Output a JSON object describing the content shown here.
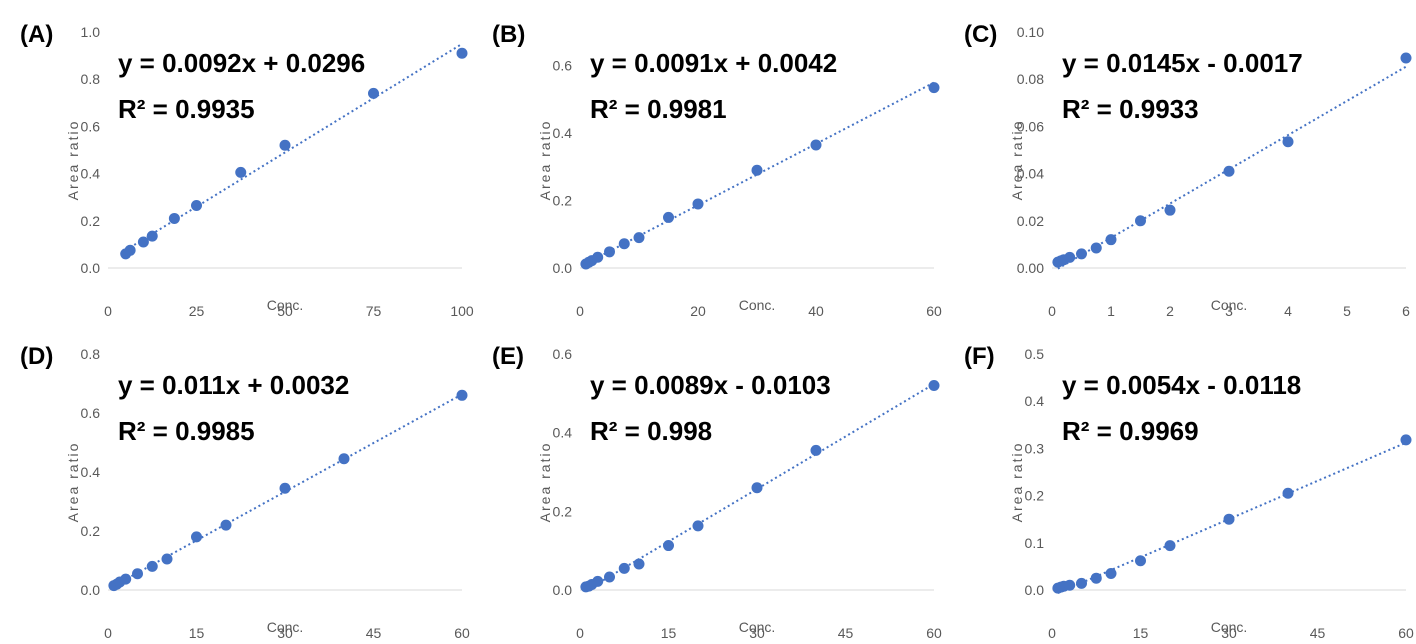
{
  "chart_data": [
    {
      "type": "scatter",
      "panel_label": "(A)",
      "equation": "y = 0.0092x + 0.0296",
      "r_squared": "R² = 0.9935",
      "xlabel": "Conc.",
      "ylabel": "Area ratio",
      "xlim": [
        0,
        100
      ],
      "ylim": [
        0,
        1.0
      ],
      "xticks": [
        "0",
        "25",
        "50",
        "75",
        "100"
      ],
      "xtick_values": [
        0,
        25,
        50,
        75,
        100
      ],
      "yticks": [
        "0.0",
        "0.2",
        "0.4",
        "0.6",
        "0.8",
        "1.0"
      ],
      "ytick_values": [
        0,
        0.2,
        0.4,
        0.6,
        0.8,
        1.0
      ],
      "trendline": {
        "slope": 0.0092,
        "intercept": 0.0296
      },
      "series": [
        {
          "x": [
            5,
            6.25,
            10,
            12.5,
            18.75,
            25,
            37.5,
            50,
            75,
            100
          ],
          "y": [
            0.06,
            0.075,
            0.11,
            0.135,
            0.21,
            0.265,
            0.405,
            0.52,
            0.74,
            0.91
          ]
        }
      ]
    },
    {
      "type": "scatter",
      "panel_label": "(B)",
      "equation": "y = 0.0091x + 0.0042",
      "r_squared": "R² = 0.9981",
      "xlabel": "Conc.",
      "ylabel": "Area ratio",
      "xlim": [
        0,
        60
      ],
      "ylim": [
        0,
        0.7
      ],
      "xticks": [
        "0",
        "20",
        "40",
        "60"
      ],
      "xtick_values": [
        0,
        20,
        40,
        60
      ],
      "yticks": [
        "0.0",
        "0.2",
        "0.4",
        "0.6"
      ],
      "ytick_values": [
        0,
        0.2,
        0.4,
        0.6
      ],
      "trendline": {
        "slope": 0.0091,
        "intercept": 0.0042
      },
      "series": [
        {
          "x": [
            1,
            1.5,
            2,
            3,
            5,
            7.5,
            10,
            15,
            20,
            30,
            40,
            60
          ],
          "y": [
            0.012,
            0.017,
            0.022,
            0.032,
            0.048,
            0.072,
            0.09,
            0.15,
            0.19,
            0.29,
            0.365,
            0.535
          ]
        }
      ]
    },
    {
      "type": "scatter",
      "panel_label": "(C)",
      "equation": "y = 0.0145x - 0.0017",
      "r_squared": "R² = 0.9933",
      "xlabel": "Conc.",
      "ylabel": "Area ratio",
      "xlim": [
        0,
        6
      ],
      "ylim": [
        0,
        0.1
      ],
      "xticks": [
        "0",
        "1",
        "2",
        "3",
        "4",
        "5",
        "6"
      ],
      "xtick_values": [
        0,
        1,
        2,
        3,
        4,
        5,
        6
      ],
      "yticks": [
        "0.00",
        "0.02",
        "0.04",
        "0.06",
        "0.08",
        "0.10"
      ],
      "ytick_values": [
        0,
        0.02,
        0.04,
        0.06,
        0.08,
        0.1
      ],
      "trendline": {
        "slope": 0.0145,
        "intercept": -0.0017
      },
      "series": [
        {
          "x": [
            0.1,
            0.15,
            0.2,
            0.3,
            0.5,
            0.75,
            1,
            1.5,
            2,
            3,
            4,
            6
          ],
          "y": [
            0.0025,
            0.003,
            0.0035,
            0.0045,
            0.006,
            0.0085,
            0.012,
            0.02,
            0.0245,
            0.041,
            0.0535,
            0.089
          ]
        }
      ]
    },
    {
      "type": "scatter",
      "panel_label": "(D)",
      "equation": "y = 0.011x + 0.0032",
      "r_squared": "R² = 0.9985",
      "xlabel": "Conc.",
      "ylabel": "Area ratio",
      "xlim": [
        0,
        60
      ],
      "ylim": [
        0,
        0.8
      ],
      "xticks": [
        "0",
        "15",
        "30",
        "45",
        "60"
      ],
      "xtick_values": [
        0,
        15,
        30,
        45,
        60
      ],
      "yticks": [
        "0.0",
        "0.2",
        "0.4",
        "0.6",
        "0.8"
      ],
      "ytick_values": [
        0,
        0.2,
        0.4,
        0.6,
        0.8
      ],
      "trendline": {
        "slope": 0.011,
        "intercept": 0.0032
      },
      "series": [
        {
          "x": [
            1,
            1.5,
            2,
            3,
            5,
            7.5,
            10,
            15,
            20,
            30,
            40,
            60
          ],
          "y": [
            0.015,
            0.02,
            0.027,
            0.037,
            0.055,
            0.08,
            0.105,
            0.18,
            0.22,
            0.345,
            0.445,
            0.66
          ]
        }
      ]
    },
    {
      "type": "scatter",
      "panel_label": "(E)",
      "equation": "y = 0.0089x - 0.0103",
      "r_squared": "R² = 0.998",
      "xlabel": "Conc.",
      "ylabel": "Area ratio",
      "xlim": [
        0,
        60
      ],
      "ylim": [
        0,
        0.6
      ],
      "xticks": [
        "0",
        "15",
        "30",
        "45",
        "60"
      ],
      "xtick_values": [
        0,
        15,
        30,
        45,
        60
      ],
      "yticks": [
        "0.0",
        "0.2",
        "0.4",
        "0.6"
      ],
      "ytick_values": [
        0,
        0.2,
        0.4,
        0.6
      ],
      "trendline": {
        "slope": 0.0089,
        "intercept": -0.0103
      },
      "series": [
        {
          "x": [
            1,
            1.5,
            2,
            3,
            5,
            7.5,
            10,
            15,
            20,
            30,
            40,
            60
          ],
          "y": [
            0.008,
            0.01,
            0.014,
            0.022,
            0.033,
            0.055,
            0.066,
            0.113,
            0.163,
            0.26,
            0.355,
            0.52
          ]
        }
      ]
    },
    {
      "type": "scatter",
      "panel_label": "(F)",
      "equation": "y = 0.0054x - 0.0118",
      "r_squared": "R² = 0.9969",
      "xlabel": "Conc.",
      "ylabel": "Area ratio",
      "xlim": [
        0,
        60
      ],
      "ylim": [
        0,
        0.5
      ],
      "xticks": [
        "0",
        "15",
        "30",
        "45",
        "60"
      ],
      "xtick_values": [
        0,
        15,
        30,
        45,
        60
      ],
      "yticks": [
        "0.0",
        "0.1",
        "0.2",
        "0.3",
        "0.4",
        "0.5"
      ],
      "ytick_values": [
        0,
        0.1,
        0.2,
        0.3,
        0.4,
        0.5
      ],
      "trendline": {
        "slope": 0.0054,
        "intercept": -0.0118
      },
      "series": [
        {
          "x": [
            1,
            1.5,
            2,
            3,
            5,
            7.5,
            10,
            15,
            20,
            30,
            40,
            60
          ],
          "y": [
            0.004,
            0.006,
            0.008,
            0.01,
            0.014,
            0.025,
            0.035,
            0.062,
            0.094,
            0.15,
            0.205,
            0.318
          ]
        }
      ]
    }
  ]
}
